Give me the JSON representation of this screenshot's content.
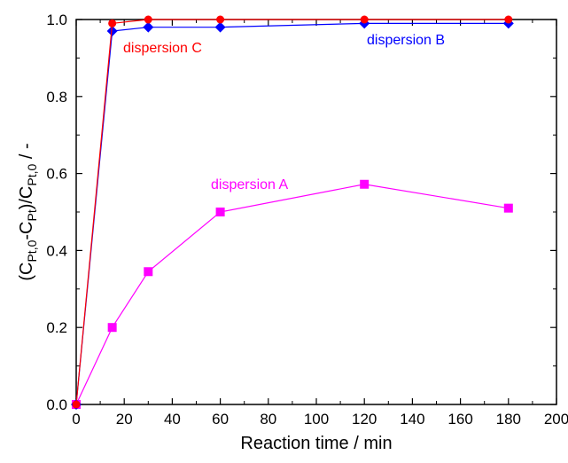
{
  "chart_data": {
    "type": "line",
    "xlabel": "Reaction time / min",
    "ylabel": {
      "base": "(C",
      "sub1": "Pt,0",
      "mid": "-C",
      "sub2": "Pt",
      "mid2": ")/C",
      "sub3": "Pt,0",
      "end": " / -"
    },
    "xlim": [
      0,
      200
    ],
    "ylim": [
      0,
      1.0
    ],
    "xticks": [
      "0",
      "20",
      "40",
      "60",
      "80",
      "100",
      "120",
      "140",
      "160",
      "180",
      "200"
    ],
    "yticks": [
      "0.0",
      "0.2",
      "0.4",
      "0.6",
      "0.8",
      "1.0"
    ],
    "grid": false,
    "series": [
      {
        "name": "dispersion A",
        "color": "#ff00ff",
        "marker": "square",
        "x": [
          0,
          15,
          30,
          60,
          120,
          180
        ],
        "y": [
          0.0,
          0.2,
          0.345,
          0.5,
          0.572,
          0.51
        ]
      },
      {
        "name": "dispersion B",
        "color": "#0000ff",
        "marker": "diamond",
        "x": [
          0,
          15,
          30,
          60,
          120,
          180
        ],
        "y": [
          0.0,
          0.97,
          0.98,
          0.98,
          0.99,
          0.99
        ]
      },
      {
        "name": "dispersion C",
        "color": "#ff0000",
        "marker": "circle",
        "x": [
          0,
          15,
          30,
          60,
          120,
          180
        ],
        "y": [
          0.0,
          0.99,
          1.0,
          1.0,
          1.0,
          1.0
        ]
      }
    ]
  }
}
